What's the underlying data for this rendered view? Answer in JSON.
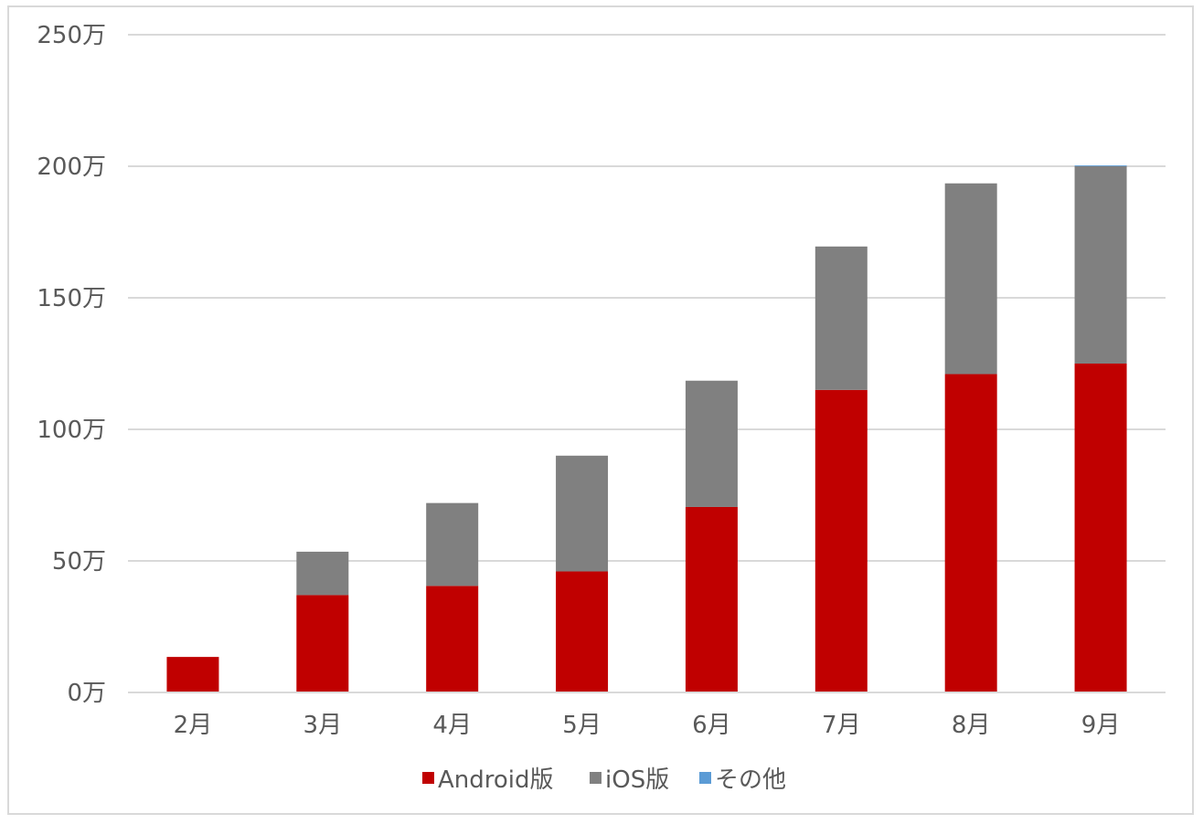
{
  "chart_data": {
    "type": "bar",
    "stacked": true,
    "categories": [
      "2月",
      "3月",
      "4月",
      "5月",
      "6月",
      "7月",
      "8月",
      "9月"
    ],
    "series": [
      {
        "name": "Android版",
        "color": "#c00000",
        "values": [
          13.5,
          37,
          40.5,
          46,
          70.5,
          115,
          121,
          125
        ]
      },
      {
        "name": "iOS版",
        "color": "#808080",
        "values": [
          0,
          16.5,
          31.5,
          44,
          48,
          54.5,
          72.5,
          75
        ]
      },
      {
        "name": "その他",
        "color": "#5b9bd5",
        "values": [
          0,
          0,
          0,
          0,
          0,
          0,
          0,
          0.3
        ]
      }
    ],
    "y_ticks": [
      "0万",
      "50万",
      "100万",
      "150万",
      "200万",
      "250万"
    ],
    "y_tick_values": [
      0,
      50,
      100,
      150,
      200,
      250
    ],
    "ylim": [
      0,
      250
    ],
    "grid": true,
    "legend_position": "bottom"
  }
}
